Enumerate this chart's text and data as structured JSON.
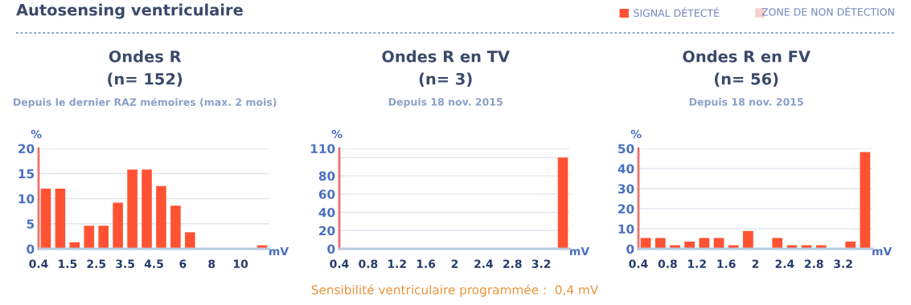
{
  "chart_data": [
    {
      "type": "bar",
      "title": "Ondes R",
      "subtitle": "(n= 152)",
      "ylabel": "%",
      "xlabel": "mV",
      "annotations": [
        "Depuis le dernier RAZ mémoires (max. 2 mois)",
        "Autosensing ventriculaire"
      ],
      "categories": [
        "0.4",
        null,
        "1.5",
        null,
        "2.5",
        null,
        "3.5",
        null,
        "4.5",
        null,
        "6",
        null,
        "8",
        null,
        "10",
        null
      ],
      "series": [
        {
          "color": "#ff5233",
          "values": [
            12,
            12,
            1.3,
            4.6,
            4.6,
            9.2,
            15.8,
            15.8,
            12.5,
            8.6,
            3.3,
            0,
            0,
            0,
            0,
            0.7
          ]
        }
      ],
      "ylim": [
        0,
        20
      ],
      "yticks": [
        0,
        5,
        10,
        15,
        20
      ],
      "grid": "y"
    },
    {
      "type": "histogram",
      "title": "Ondes R en TV",
      "subtitle": "(n= 3)",
      "ylabel": "%",
      "xlabel": "mV",
      "annotations": [
        "Depuis 18 nov. 2015",
        "Sensibilité ventriculaire programmée :  0,4 mV"
      ],
      "bins": [
        0.4,
        0.6,
        0.8,
        1.0,
        1.2,
        1.4,
        1.6,
        1.8,
        2.0,
        2.2,
        2.4,
        2.6,
        2.8,
        3.0,
        3.2,
        3.4,
        3.6
      ],
      "series": [
        {
          "color": "#ff5233",
          "values": [
            0,
            0,
            0,
            0,
            0,
            0,
            0,
            0,
            0,
            0,
            0,
            0,
            0,
            0,
            0,
            100
          ]
        }
      ],
      "xlim": [
        0.4,
        3.6
      ],
      "xticks": [
        0.4,
        0.8,
        1.2,
        1.6,
        2,
        2.4,
        2.8,
        3.2
      ],
      "ylim": [
        0,
        110
      ],
      "yticks": [
        0,
        20,
        40,
        60,
        80,
        {
          "value": 100,
          "label": null
        },
        110
      ],
      "grid": "y"
    },
    {
      "type": "histogram",
      "title": "Ondes R en FV",
      "subtitle": "(n= 56)",
      "ylabel": "%",
      "xlabel": "mV",
      "annotations": [
        "Depuis 18 nov. 2015",
        "ZONE DE NON DÉTECTION"
      ],
      "bins": [
        0.4,
        0.6,
        0.8,
        1.0,
        1.2,
        1.4,
        1.6,
        1.8,
        2.0,
        2.2,
        2.4,
        2.6,
        2.8,
        3.0,
        3.2,
        3.4,
        3.6
      ],
      "series": [
        {
          "name": "SIGNAL DÉTECTÉ",
          "color": "#ff5233",
          "values": [
            5.4,
            5.4,
            1.8,
            3.6,
            5.4,
            5.4,
            1.8,
            8.9,
            0,
            5.4,
            1.8,
            1.8,
            1.8,
            0,
            3.6,
            48.2
          ]
        }
      ],
      "xlim": [
        0.4,
        3.6
      ],
      "xticks": [
        0.4,
        0.8,
        1.2,
        1.6,
        2,
        2.4,
        2.8,
        3.2
      ],
      "ylim": [
        0,
        50
      ],
      "yticks": [
        0,
        10,
        20,
        30,
        40,
        50
      ],
      "grid": "y",
      "legend": "top left"
    }
  ]
}
